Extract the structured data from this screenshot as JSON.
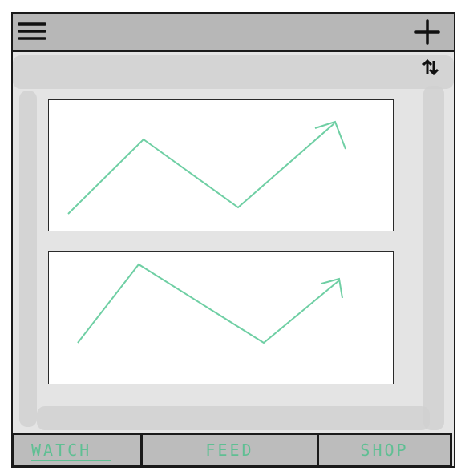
{
  "header": {
    "menu_icon": "hamburger-menu-icon",
    "add_icon": "plus-icon",
    "sort_icon": "sort-arrows-icon"
  },
  "cards": [
    {
      "chart_icon": "trend-arrow-chart-icon"
    },
    {
      "chart_icon": "trend-arrow-chart-icon"
    }
  ],
  "tabs": [
    {
      "label": "WATCH",
      "active": true
    },
    {
      "label": "FEED",
      "active": false
    },
    {
      "label": "SHOP",
      "active": false
    }
  ],
  "colors": {
    "accent": "#5fbf93",
    "header": "#b7b7b7",
    "background": "#e4e4e4",
    "tabbar": "#bcbcbc"
  }
}
